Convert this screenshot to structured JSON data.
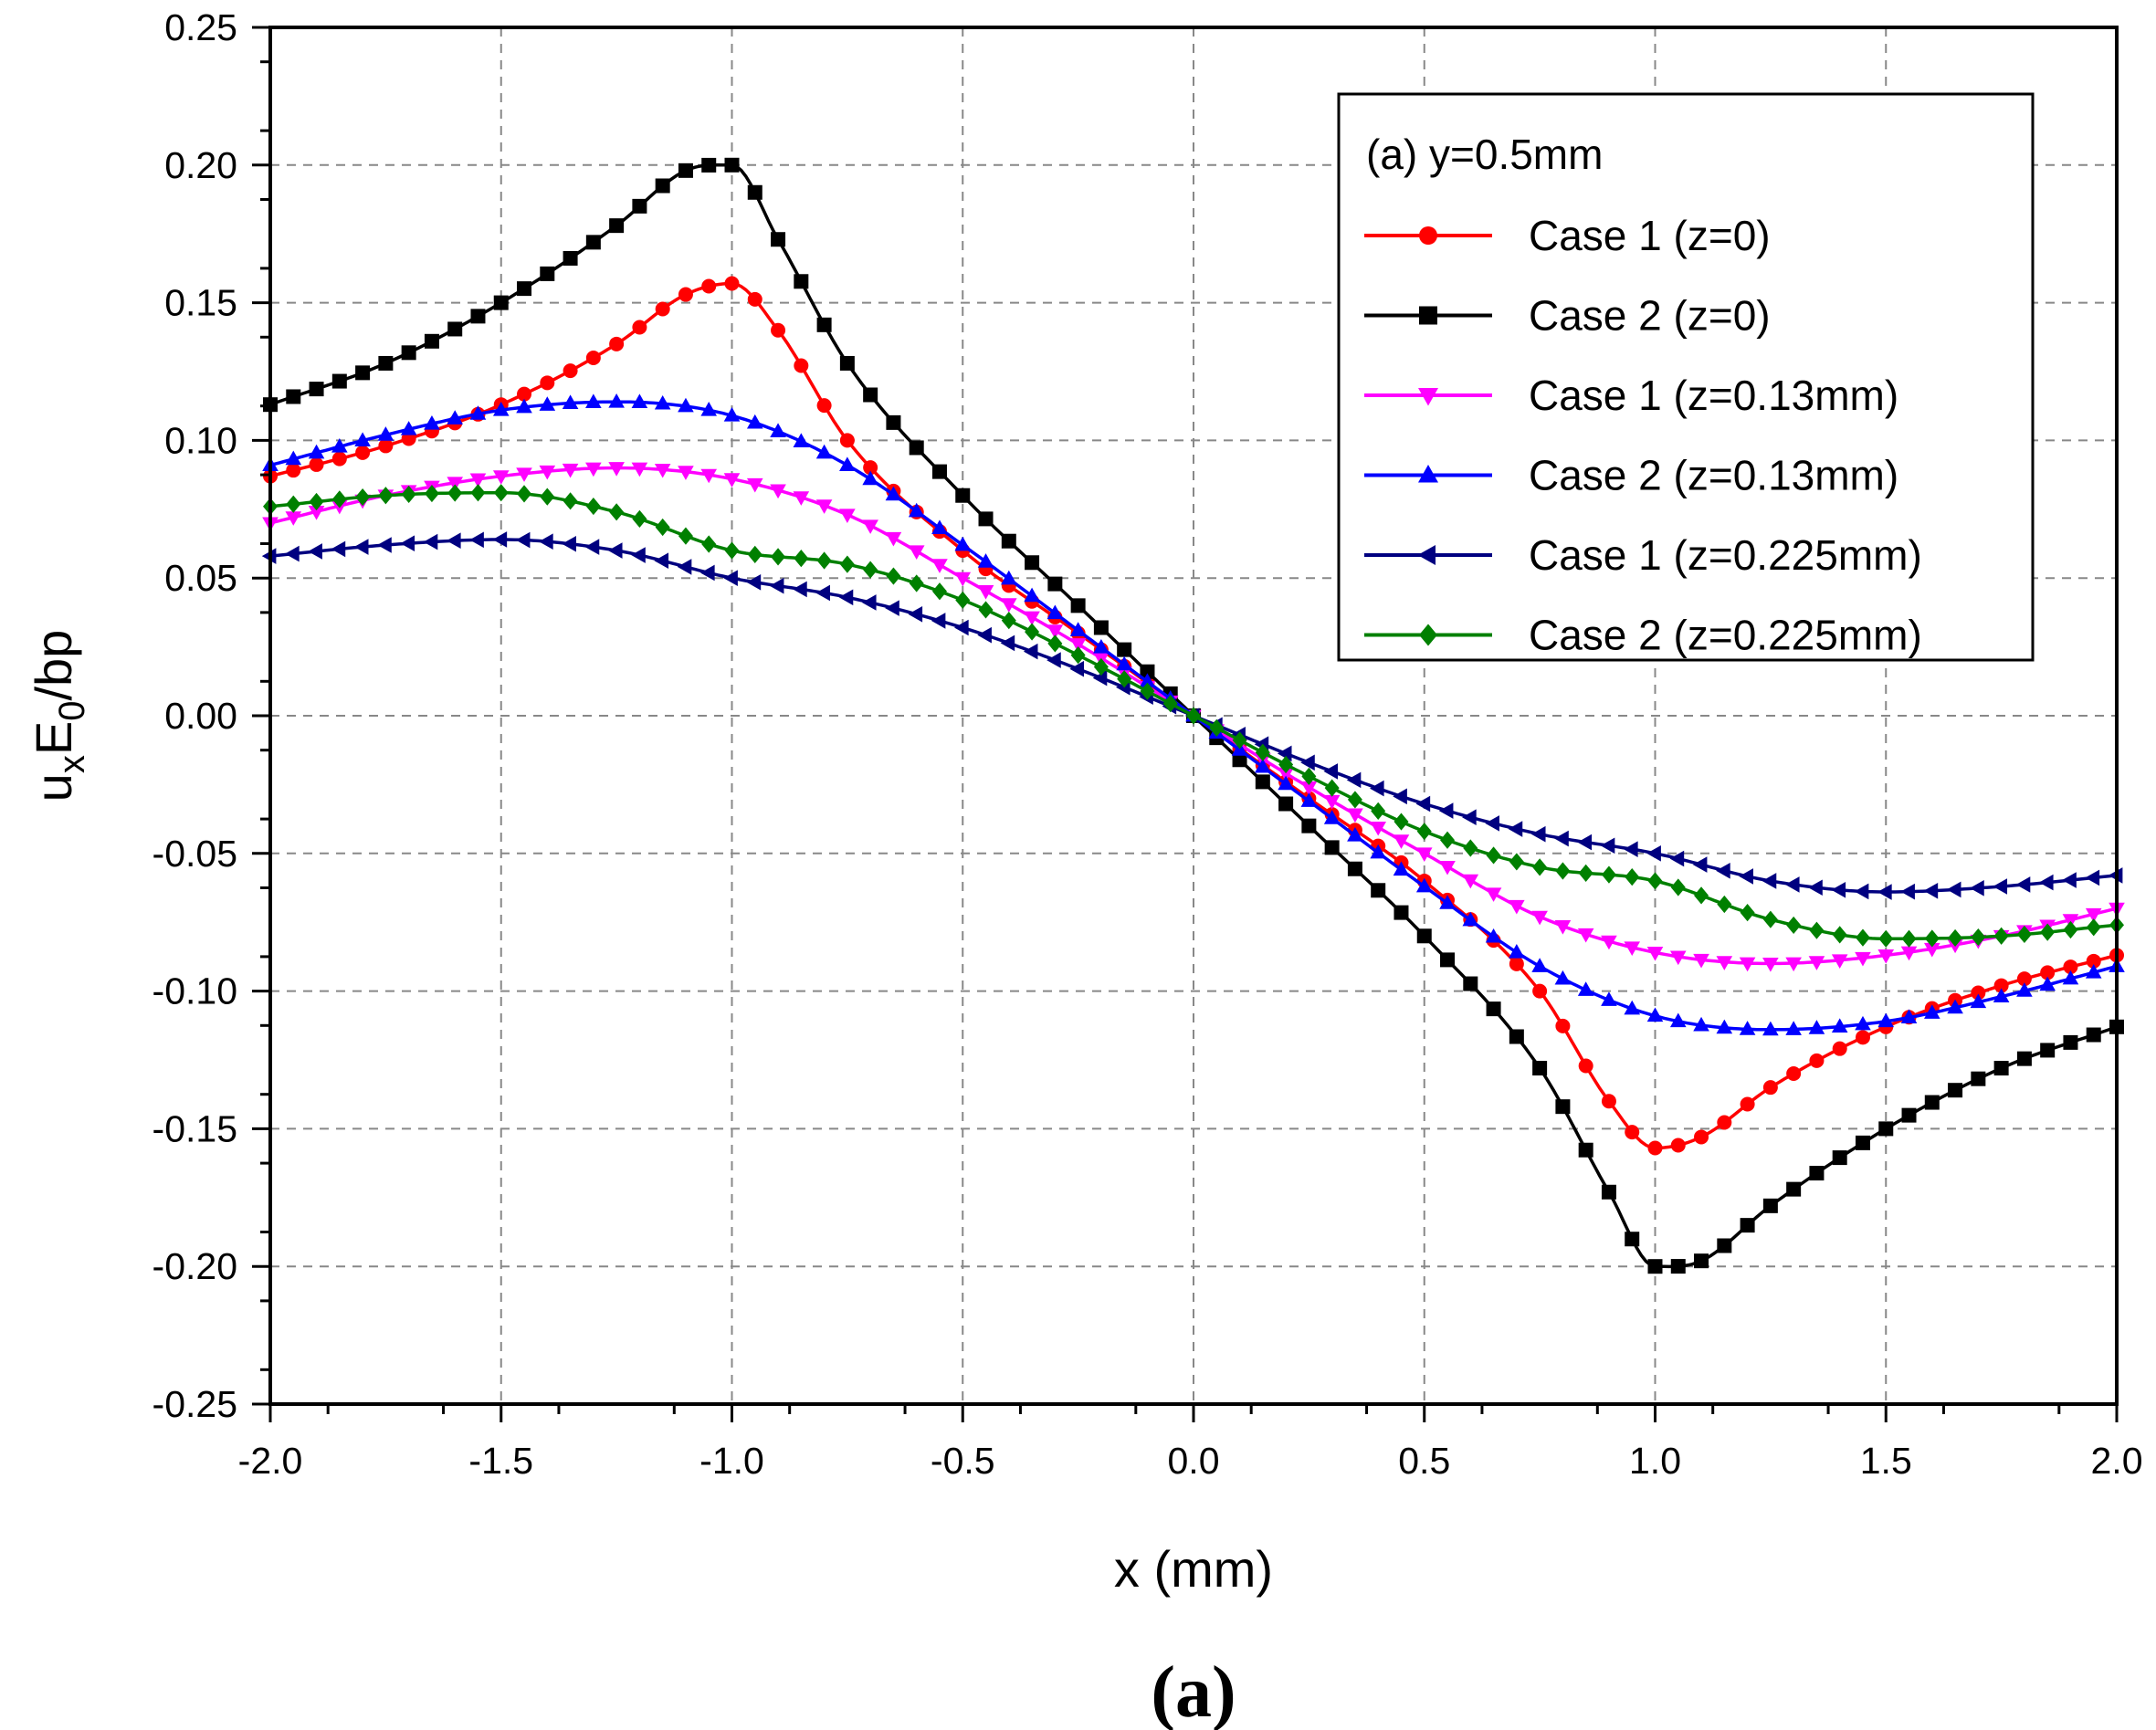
{
  "chart_data": {
    "type": "line",
    "title": "",
    "panel_label": "(a)",
    "xlabel": "x (mm)",
    "ylabel": {
      "base": "u",
      "sub1": "x",
      "mid": "E",
      "sub2": "0",
      "tail": "/bp"
    },
    "xlim": [
      -2.0,
      2.0
    ],
    "ylim": [
      -0.25,
      0.25
    ],
    "xticks": [
      "-2.0",
      "-1.5",
      "-1.0",
      "-0.5",
      "0.0",
      "0.5",
      "1.0",
      "1.5",
      "2.0"
    ],
    "yticks": [
      "0.25",
      "0.20",
      "0.15",
      "0.10",
      "0.05",
      "0.00",
      "-0.05",
      "-0.10",
      "-0.15",
      "-0.20",
      "-0.25"
    ],
    "grid": true,
    "legend_title": "(a) y=0.5mm",
    "legend_position": "top-right",
    "series": [
      {
        "name": "Case 1 (z=0)",
        "color": "#ff0000",
        "marker": "circle",
        "x": [
          -2.0,
          -1.75,
          -1.5,
          -1.25,
          -1.1,
          -1.0,
          -0.9,
          -0.75,
          -0.5,
          -0.25,
          0.0,
          0.25,
          0.5,
          0.75,
          0.9,
          1.0,
          1.1,
          1.25,
          1.5,
          1.75,
          2.0
        ],
        "y": [
          0.087,
          0.098,
          0.113,
          0.135,
          0.153,
          0.157,
          0.14,
          0.1,
          0.06,
          0.03,
          0.0,
          -0.03,
          -0.06,
          -0.1,
          -0.14,
          -0.157,
          -0.153,
          -0.135,
          -0.113,
          -0.098,
          -0.087
        ]
      },
      {
        "name": "Case 2 (z=0)",
        "color": "#000000",
        "marker": "square",
        "x": [
          -2.0,
          -1.75,
          -1.5,
          -1.25,
          -1.1,
          -1.0,
          -0.9,
          -0.75,
          -0.5,
          -0.25,
          0.0,
          0.25,
          0.5,
          0.75,
          0.9,
          1.0,
          1.1,
          1.25,
          1.5,
          1.75,
          2.0
        ],
        "y": [
          0.113,
          0.128,
          0.15,
          0.178,
          0.198,
          0.2,
          0.173,
          0.128,
          0.08,
          0.04,
          0.0,
          -0.04,
          -0.08,
          -0.128,
          -0.173,
          -0.2,
          -0.198,
          -0.178,
          -0.15,
          -0.128,
          -0.113
        ]
      },
      {
        "name": "Case 1 (z=0.13mm)",
        "color": "#ff00ff",
        "marker": "triangle-down",
        "x": [
          -2.0,
          -1.75,
          -1.5,
          -1.25,
          -1.0,
          -0.75,
          -0.5,
          -0.25,
          0.0,
          0.25,
          0.5,
          0.75,
          1.0,
          1.25,
          1.5,
          1.75,
          2.0
        ],
        "y": [
          0.07,
          0.08,
          0.087,
          0.09,
          0.086,
          0.073,
          0.05,
          0.026,
          0.0,
          -0.026,
          -0.05,
          -0.073,
          -0.086,
          -0.09,
          -0.087,
          -0.08,
          -0.07
        ]
      },
      {
        "name": "Case 2 (z=0.13mm)",
        "color": "#0000ff",
        "marker": "triangle-up",
        "x": [
          -2.0,
          -1.75,
          -1.5,
          -1.25,
          -1.0,
          -0.75,
          -0.5,
          -0.25,
          0.0,
          0.25,
          0.5,
          0.75,
          1.0,
          1.25,
          1.5,
          1.75,
          2.0
        ],
        "y": [
          0.091,
          0.102,
          0.111,
          0.114,
          0.109,
          0.091,
          0.062,
          0.031,
          0.0,
          -0.031,
          -0.062,
          -0.091,
          -0.109,
          -0.114,
          -0.111,
          -0.102,
          -0.091
        ]
      },
      {
        "name": "Case 1 (z=0.225mm)",
        "color": "#000080",
        "marker": "triangle-left",
        "x": [
          -2.0,
          -1.75,
          -1.5,
          -1.25,
          -1.0,
          -0.75,
          -0.5,
          -0.25,
          0.0,
          0.25,
          0.5,
          0.75,
          1.0,
          1.25,
          1.5,
          1.75,
          2.0
        ],
        "y": [
          0.058,
          0.062,
          0.064,
          0.06,
          0.05,
          0.043,
          0.032,
          0.017,
          0.0,
          -0.017,
          -0.032,
          -0.043,
          -0.05,
          -0.06,
          -0.064,
          -0.062,
          -0.058
        ]
      },
      {
        "name": "Case 2 (z=0.225mm)",
        "color": "#008000",
        "marker": "diamond",
        "x": [
          -2.0,
          -1.75,
          -1.5,
          -1.25,
          -1.0,
          -0.75,
          -0.5,
          -0.25,
          0.0,
          0.25,
          0.5,
          0.75,
          1.0,
          1.25,
          1.5,
          1.75,
          2.0
        ],
        "y": [
          0.076,
          0.08,
          0.081,
          0.074,
          0.06,
          0.055,
          0.042,
          0.022,
          0.0,
          -0.022,
          -0.042,
          -0.055,
          -0.06,
          -0.074,
          -0.081,
          -0.08,
          -0.076
        ]
      }
    ]
  }
}
